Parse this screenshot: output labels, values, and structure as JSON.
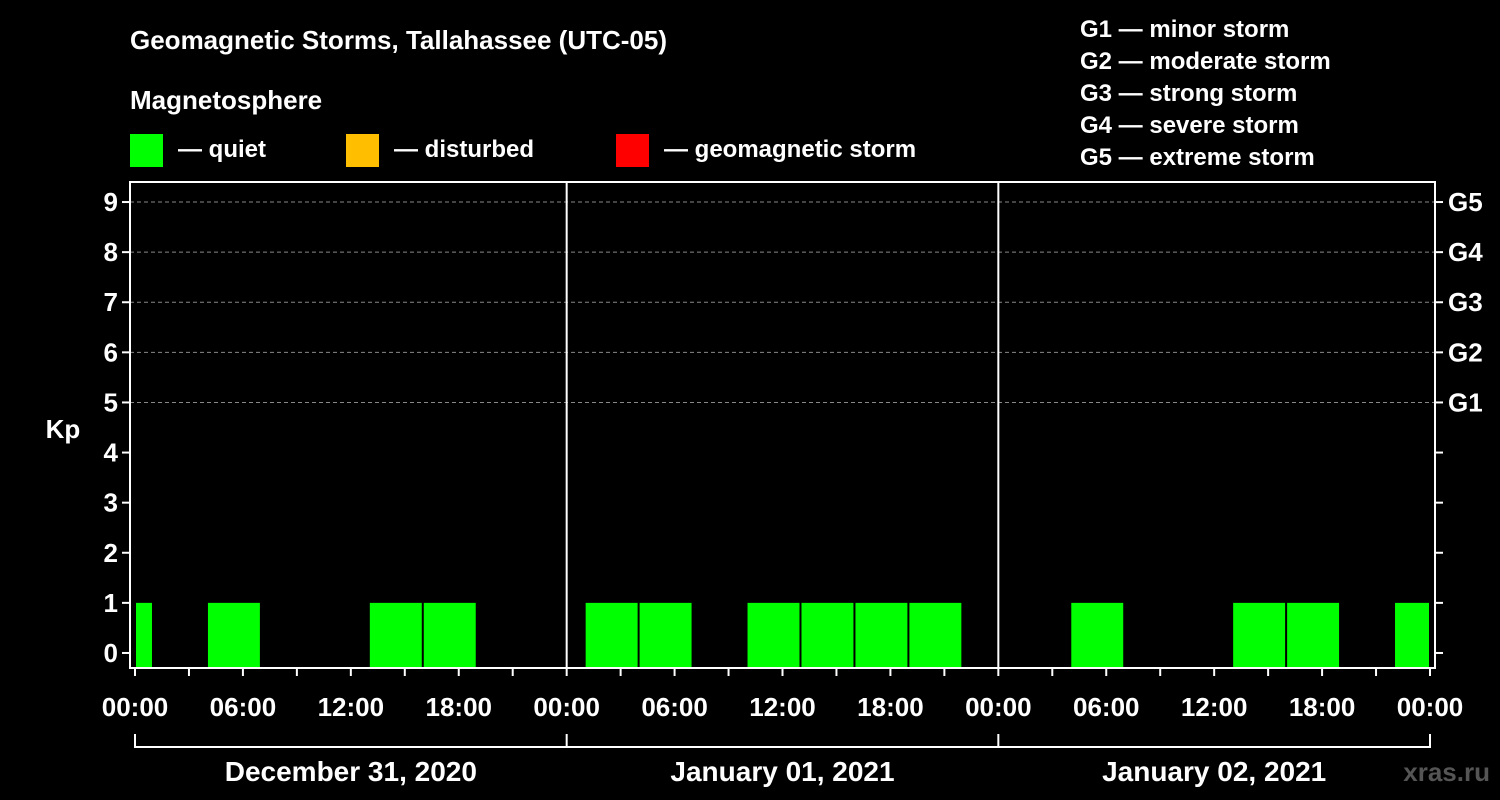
{
  "chart_data": {
    "type": "bar",
    "title": "Geomagnetic Storms, Tallahassee (UTC-05)",
    "legend_title": "Magnetosphere",
    "legend": [
      {
        "label": "— quiet",
        "color": "#00ff00"
      },
      {
        "label": "— disturbed",
        "color": "#ffbf00"
      },
      {
        "label": "— geomagnetic storm",
        "color": "#ff0000"
      }
    ],
    "storm_scale_legend": [
      "G1 — minor storm",
      "G2 — moderate storm",
      "G3 — strong storm",
      "G4 — severe storm",
      "G5 — extreme storm"
    ],
    "ylabel": "Kp",
    "ylim": [
      -0.3,
      9.4
    ],
    "y_ticks": [
      "0",
      "1",
      "2",
      "3",
      "4",
      "5",
      "6",
      "7",
      "8",
      "9"
    ],
    "right_ticks": [
      {
        "kp": 5,
        "label": "G1"
      },
      {
        "kp": 6,
        "label": "G2"
      },
      {
        "kp": 7,
        "label": "G3"
      },
      {
        "kp": 8,
        "label": "G4"
      },
      {
        "kp": 9,
        "label": "G5"
      }
    ],
    "x_tick_labels": [
      "00:00",
      "06:00",
      "12:00",
      "18:00",
      "00:00",
      "06:00",
      "12:00",
      "18:00",
      "00:00",
      "06:00",
      "12:00",
      "18:00",
      "00:00"
    ],
    "days": [
      "December 31, 2020",
      "January 01, 2021",
      "January 02, 2021"
    ],
    "grid": "dashed at Kp 5-9",
    "bars": [
      {
        "start_hour": 0,
        "end_hour": 1,
        "kp": 1,
        "status": "quiet"
      },
      {
        "start_hour": 4,
        "end_hour": 7,
        "kp": 1,
        "status": "quiet"
      },
      {
        "start_hour": 13,
        "end_hour": 16,
        "kp": 1,
        "status": "quiet"
      },
      {
        "start_hour": 16,
        "end_hour": 19,
        "kp": 1,
        "status": "quiet"
      },
      {
        "start_hour": 25,
        "end_hour": 28,
        "kp": 1,
        "status": "quiet"
      },
      {
        "start_hour": 28,
        "end_hour": 31,
        "kp": 1,
        "status": "quiet"
      },
      {
        "start_hour": 34,
        "end_hour": 37,
        "kp": 1,
        "status": "quiet"
      },
      {
        "start_hour": 37,
        "end_hour": 40,
        "kp": 1,
        "status": "quiet"
      },
      {
        "start_hour": 40,
        "end_hour": 43,
        "kp": 1,
        "status": "quiet"
      },
      {
        "start_hour": 43,
        "end_hour": 46,
        "kp": 1,
        "status": "quiet"
      },
      {
        "start_hour": 52,
        "end_hour": 55,
        "kp": 1,
        "status": "quiet"
      },
      {
        "start_hour": 61,
        "end_hour": 64,
        "kp": 1,
        "status": "quiet"
      },
      {
        "start_hour": 64,
        "end_hour": 67,
        "kp": 1,
        "status": "quiet"
      },
      {
        "start_hour": 70,
        "end_hour": 72,
        "kp": 1,
        "status": "quiet"
      }
    ]
  },
  "watermark": "xras.ru"
}
